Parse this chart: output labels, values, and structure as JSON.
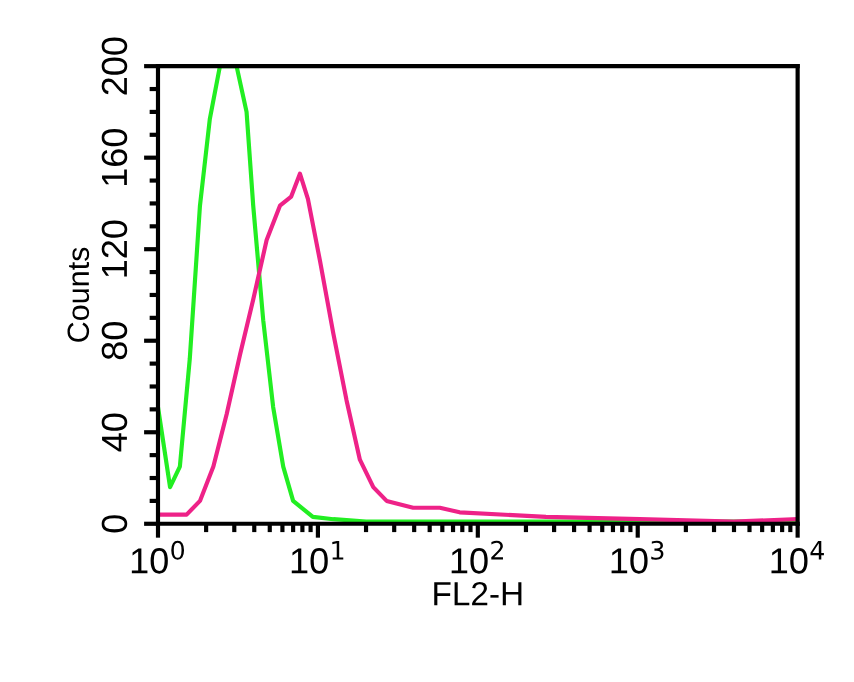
{
  "chart_data": {
    "type": "line",
    "xlabel": "FL2-H",
    "ylabel": "Counts",
    "log": "x",
    "xlim": [
      1,
      10000
    ],
    "ylim": [
      0,
      200
    ],
    "xticks": [
      {
        "value": 1,
        "label": "10$^{0}$"
      },
      {
        "value": 10,
        "label": "10$^{1}$"
      },
      {
        "value": 100,
        "label": "10$^{2}$"
      },
      {
        "value": 1000,
        "label": "10$^{3}$"
      },
      {
        "value": 10000,
        "label": "10$^{4}$"
      }
    ],
    "yticks": [
      0,
      40,
      80,
      120,
      160,
      200
    ],
    "grid": false,
    "marker": "none",
    "line_style": "solid",
    "series": [
      {
        "color": "#22ee22",
        "x": [
          1,
          1.19,
          1.37,
          1.58,
          1.83,
          2.11,
          2.44,
          3.1,
          3.58,
          3.94,
          4.55,
          5.25,
          6.07,
          7.0,
          9.3,
          12.5,
          20,
          100,
          1000,
          10000
        ],
        "values": [
          51,
          16,
          25,
          72,
          139,
          177,
          200,
          200,
          180,
          139,
          89,
          51,
          25,
          10,
          3,
          2,
          1,
          1,
          1,
          1
        ]
      },
      {
        "color": "#ee2288",
        "x": [
          1,
          1.51,
          1.83,
          2.22,
          2.69,
          3.26,
          3.94,
          4.78,
          5.79,
          6.81,
          7.72,
          8.66,
          10.3,
          12.5,
          15.1,
          18.3,
          22.2,
          26.9,
          39.4,
          57.9,
          77,
          267,
          1030,
          3980,
          10000
        ],
        "values": [
          4,
          4,
          10,
          25,
          48,
          74,
          98,
          124,
          139,
          143,
          153,
          142,
          115,
          83,
          54,
          28,
          16,
          10,
          7,
          7,
          5,
          3,
          2,
          1,
          2
        ]
      }
    ]
  }
}
